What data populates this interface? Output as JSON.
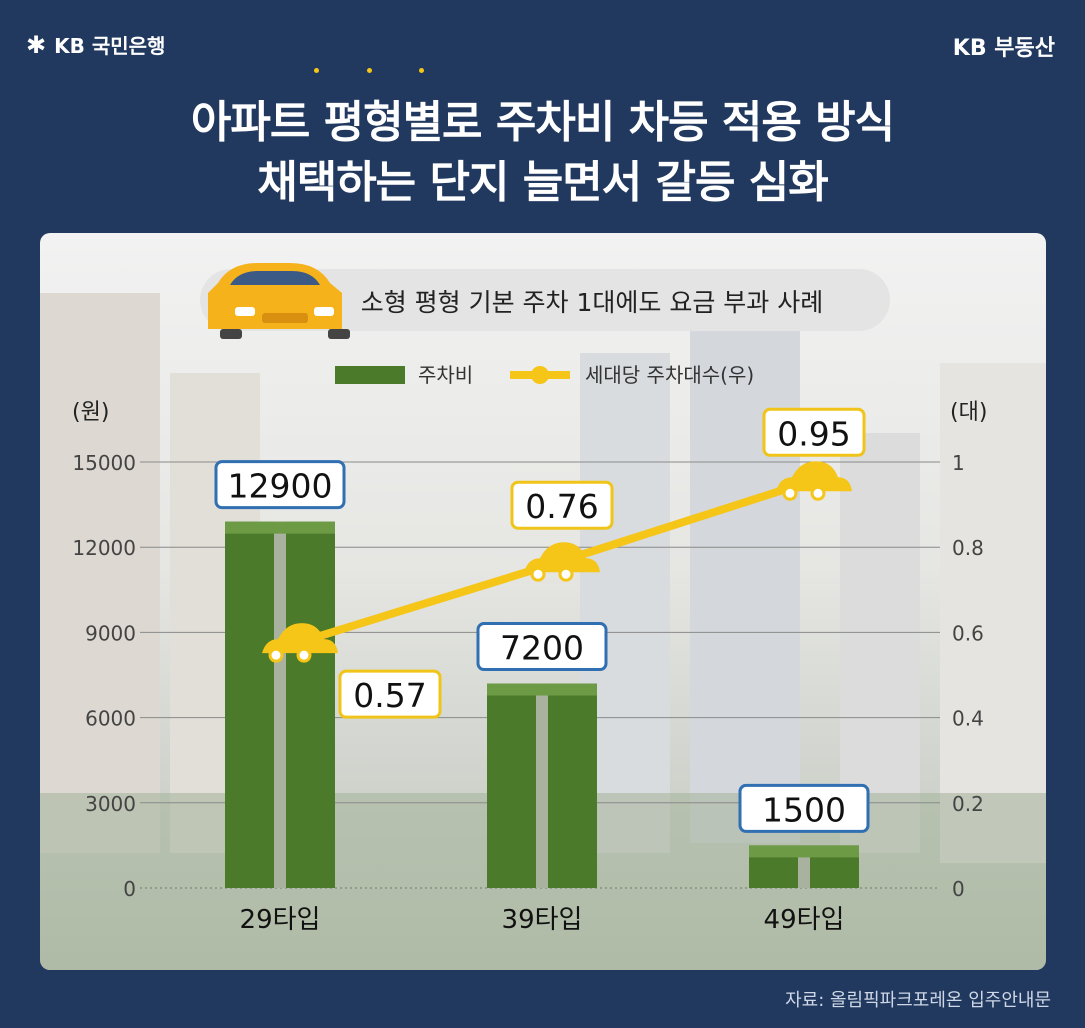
{
  "header": {
    "bank_logo": "KB 국민은행",
    "brand": "KB 부동산",
    "title_line1": "아파트 평형별로 주차비 차등 적용 방식",
    "title_line2": "채택하는 단지 늘면서 갈등 심화"
  },
  "source": "자료: 올림픽파크포레온 입주안내문",
  "icons": [
    "kb-star-icon",
    "car-icon"
  ],
  "colors": {
    "background": "#21385f",
    "bar": "#4a7a2a",
    "line": "#f5c518",
    "label_border": "#2f6fb2",
    "label_border_line": "#f0c419"
  },
  "chart_data": {
    "type": "bar",
    "title": "소형 평형 기본 주차 1대에도 요금 부과 사례",
    "categories": [
      "29타입",
      "39타입",
      "49타입"
    ],
    "series": [
      {
        "name": "주차비",
        "kind": "bar",
        "axis": "left",
        "values": [
          12900,
          7200,
          1500
        ],
        "labels": [
          "12900",
          "7200",
          "1500"
        ]
      },
      {
        "name": "세대당 주차대수(우)",
        "kind": "line",
        "axis": "right",
        "values": [
          0.57,
          0.76,
          0.95
        ],
        "labels": [
          "0.57",
          "0.76",
          "0.95"
        ]
      }
    ],
    "ylabel": "(원)",
    "y2label": "(대)",
    "ylim": [
      0,
      15000
    ],
    "y2lim": [
      0,
      1
    ],
    "yticks": [
      "15000",
      "12000",
      "9000",
      "6000",
      "3000",
      "0"
    ],
    "y2ticks": [
      "1",
      "0.8",
      "0.6",
      "0.4",
      "0.2",
      "0"
    ],
    "grid": true,
    "legend": "top-center"
  }
}
